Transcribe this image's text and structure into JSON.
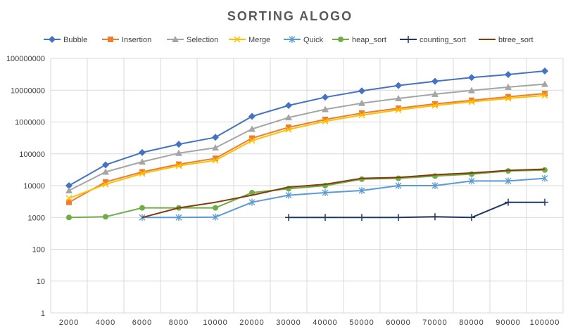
{
  "chart_data": {
    "type": "line",
    "title": "SORTING ALOGO",
    "xlabel": "",
    "ylabel": "",
    "y_scale": "log",
    "ylim": [
      1,
      100000000
    ],
    "y_ticks": [
      "1",
      "10",
      "100",
      "1000",
      "10000",
      "100000",
      "1000000",
      "10000000",
      "100000000"
    ],
    "categories": [
      "2000",
      "4000",
      "6000",
      "8000",
      "10000",
      "20000",
      "30000",
      "40000",
      "50000",
      "60000",
      "70000",
      "80000",
      "90000",
      "100000"
    ],
    "grid": true,
    "legend_position": "top",
    "series": [
      {
        "name": "Bubble",
        "color": "#4472C4",
        "marker": "diamond",
        "values": [
          10000,
          45000,
          110000,
          200000,
          330000,
          1500000,
          3300000,
          6000000,
          9500000,
          14000000,
          19000000,
          25000000,
          31000000,
          40000000
        ]
      },
      {
        "name": "Insertion",
        "color": "#ED7D31",
        "marker": "square",
        "values": [
          3000,
          13000,
          27000,
          47000,
          72000,
          310000,
          680000,
          1200000,
          1900000,
          2700000,
          3700000,
          4800000,
          6200000,
          7800000
        ]
      },
      {
        "name": "Selection",
        "color": "#A5A5A5",
        "marker": "triangle",
        "values": [
          7000,
          27000,
          56000,
          105000,
          155000,
          600000,
          1380000,
          2500000,
          3900000,
          5500000,
          7500000,
          9800000,
          12500000,
          15500000
        ]
      },
      {
        "name": "Merge",
        "color": "#FFC000",
        "marker": "x",
        "values": [
          4000,
          11000,
          24000,
          42000,
          62000,
          260000,
          580000,
          1050000,
          1650000,
          2400000,
          3300000,
          4300000,
          5500000,
          6800000
        ]
      },
      {
        "name": "Quick",
        "color": "#5B9BD5",
        "marker": "asterisk",
        "values": [
          null,
          null,
          1000,
          1000,
          1030,
          3000,
          5000,
          6000,
          7000,
          10000,
          10000,
          14000,
          14000,
          17000
        ]
      },
      {
        "name": "heap_sort",
        "color": "#70AD47",
        "marker": "circle",
        "values": [
          1000,
          1050,
          2000,
          2000,
          2000,
          6000,
          8000,
          10000,
          16000,
          17000,
          20000,
          23000,
          29000,
          31000
        ]
      },
      {
        "name": "counting_sort",
        "color": "#1F3864",
        "marker": "plus",
        "values": [
          null,
          null,
          null,
          null,
          null,
          null,
          1000,
          1000,
          1000,
          1000,
          1050,
          1000,
          3000,
          3000
        ]
      },
      {
        "name": "btree_sort",
        "color": "#843C0C",
        "marker": "dash",
        "values": [
          null,
          null,
          1000,
          2000,
          3000,
          5000,
          9000,
          11000,
          17000,
          18000,
          22000,
          25000,
          30000,
          33000
        ]
      }
    ]
  }
}
